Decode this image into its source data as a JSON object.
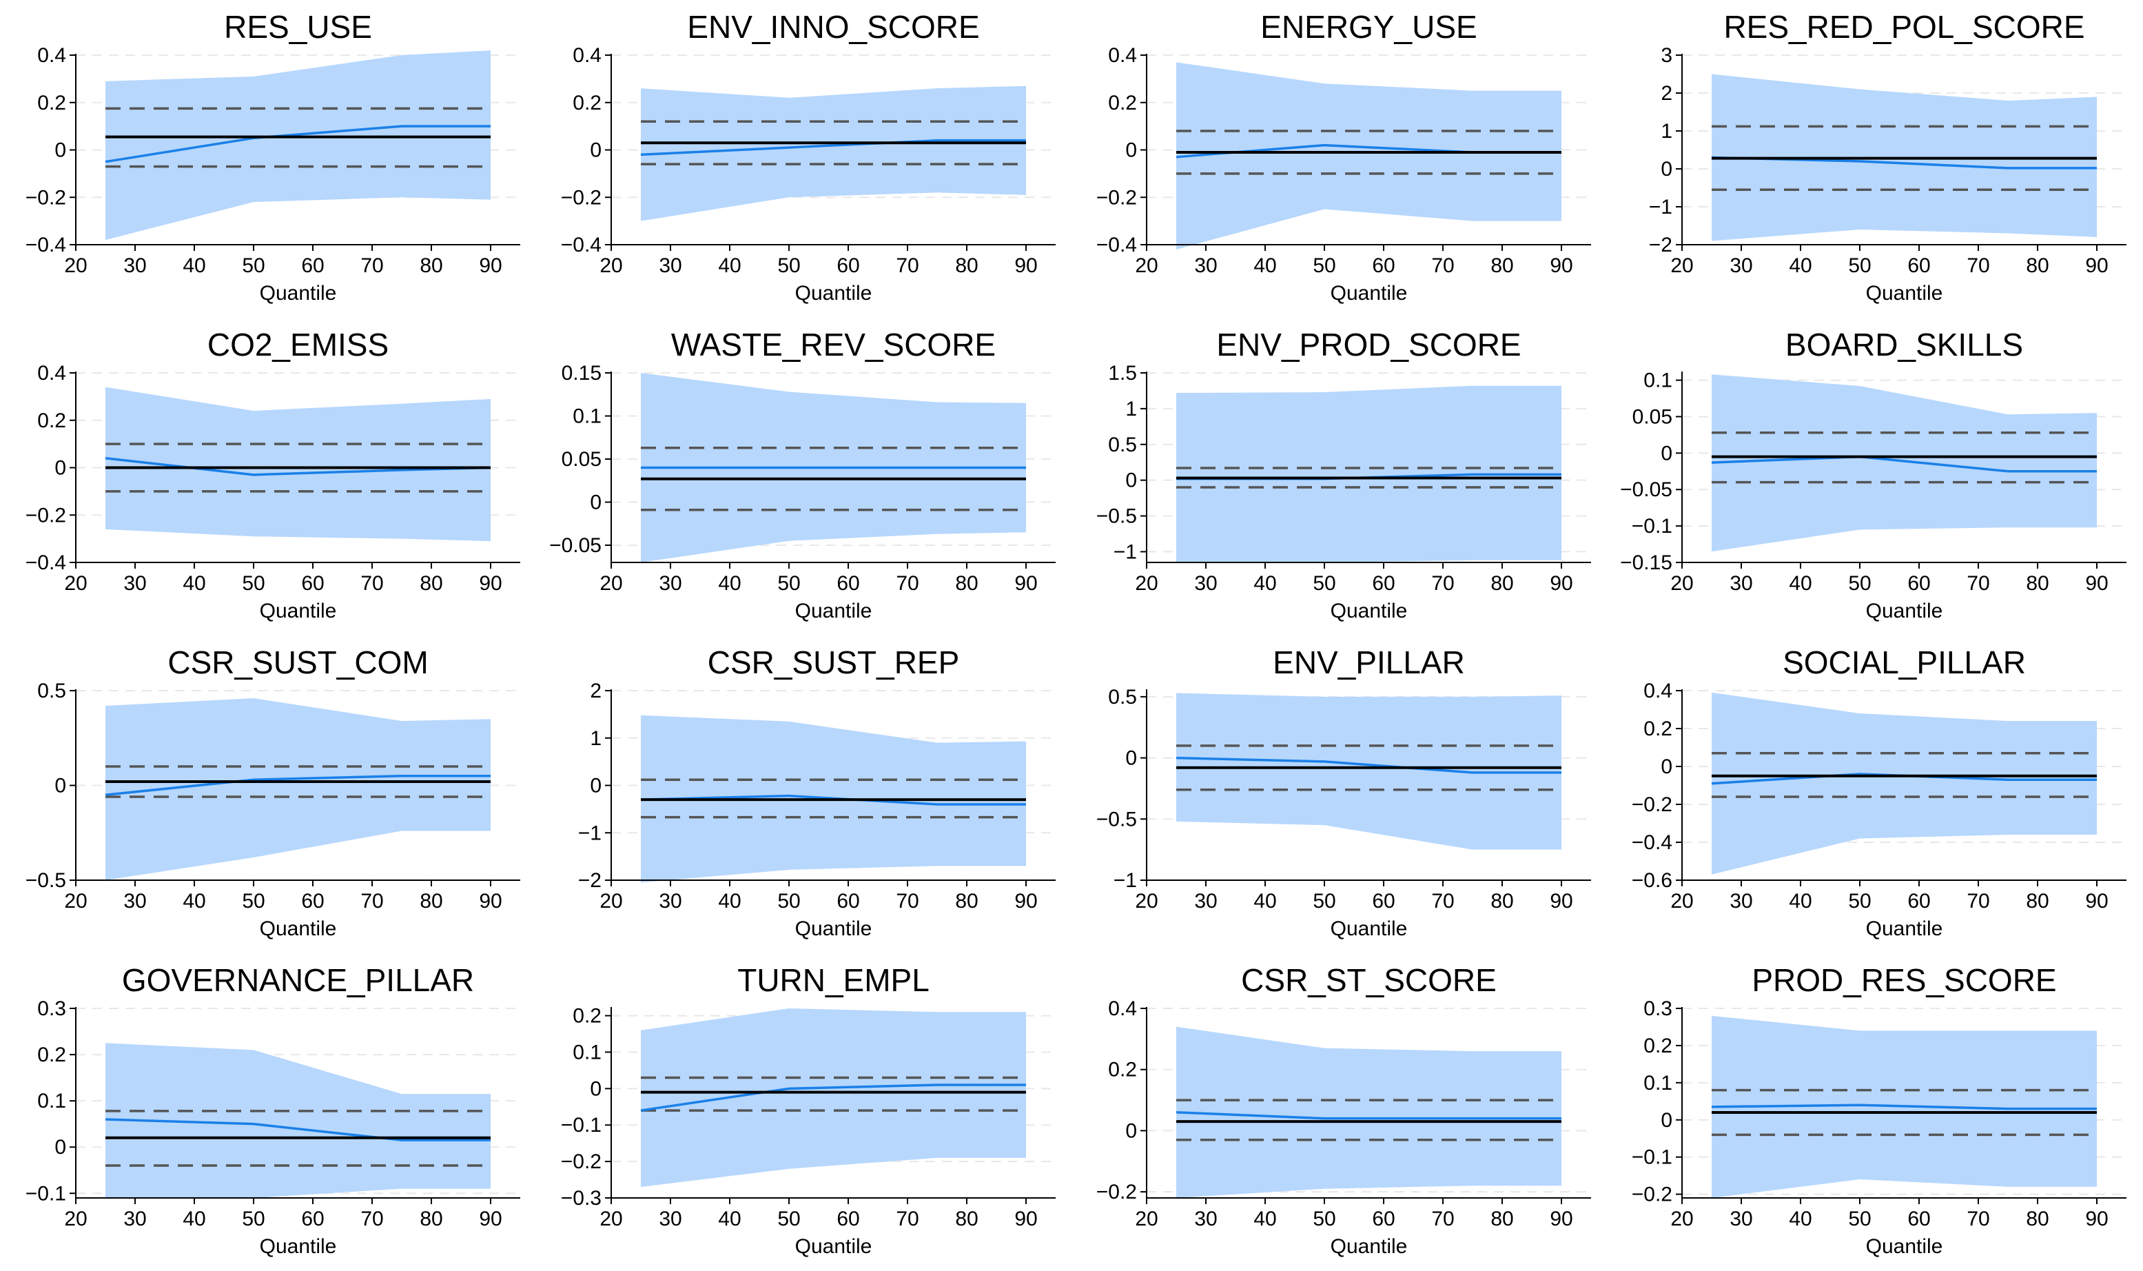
{
  "colors": {
    "band": "#b7d7fd",
    "qr_line": "#1a80e8",
    "ols_line": "#000000",
    "ols_ci": "#555555",
    "grid": "#e8e8e8",
    "axis": "#000000"
  },
  "chart_data": [
    {
      "type": "line",
      "title": "RES_USE",
      "xlabel": "Quantile",
      "ylabel": "",
      "ylim": [
        -0.4,
        0.4
      ],
      "yticks": [
        -0.4,
        -0.2,
        0,
        0.2,
        0.4
      ],
      "ytick_labels": [
        "−0.4",
        "−0.2",
        "0",
        "0.2",
        "0.4"
      ],
      "xlim": [
        20,
        95
      ],
      "xticks": [
        20,
        30,
        40,
        50,
        60,
        70,
        80,
        90
      ],
      "x": [
        25,
        50,
        75,
        90
      ],
      "qr": [
        -0.05,
        0.05,
        0.1,
        0.1
      ],
      "ci_low": [
        -0.38,
        -0.22,
        -0.2,
        -0.21
      ],
      "ci_high": [
        0.29,
        0.31,
        0.4,
        0.42
      ],
      "ols": 0.055,
      "ols_ci": [
        -0.07,
        0.175
      ]
    },
    {
      "type": "line",
      "title": "ENV_INNO_SCORE",
      "xlabel": "Quantile",
      "ylabel": "",
      "ylim": [
        -0.4,
        0.4
      ],
      "yticks": [
        -0.4,
        -0.2,
        0,
        0.2,
        0.4
      ],
      "ytick_labels": [
        "−0.4",
        "−0.2",
        "0",
        "0.2",
        "0.4"
      ],
      "xlim": [
        20,
        95
      ],
      "xticks": [
        20,
        30,
        40,
        50,
        60,
        70,
        80,
        90
      ],
      "x": [
        25,
        50,
        75,
        90
      ],
      "qr": [
        -0.02,
        0.01,
        0.04,
        0.04
      ],
      "ci_low": [
        -0.3,
        -0.2,
        -0.18,
        -0.19
      ],
      "ci_high": [
        0.26,
        0.22,
        0.26,
        0.27
      ],
      "ols": 0.03,
      "ols_ci": [
        -0.06,
        0.12
      ]
    },
    {
      "type": "line",
      "title": "ENERGY_USE",
      "xlabel": "Quantile",
      "ylabel": "",
      "ylim": [
        -0.4,
        0.4
      ],
      "yticks": [
        -0.4,
        -0.2,
        0,
        0.2,
        0.4
      ],
      "ytick_labels": [
        "−0.4",
        "−0.2",
        "0",
        "0.2",
        "0.4"
      ],
      "xlim": [
        20,
        95
      ],
      "xticks": [
        20,
        30,
        40,
        50,
        60,
        70,
        80,
        90
      ],
      "x": [
        25,
        50,
        75,
        90
      ],
      "qr": [
        -0.03,
        0.02,
        -0.01,
        -0.01
      ],
      "ci_low": [
        -0.42,
        -0.25,
        -0.3,
        -0.3
      ],
      "ci_high": [
        0.37,
        0.28,
        0.25,
        0.25
      ],
      "ols": -0.01,
      "ols_ci": [
        -0.1,
        0.08
      ]
    },
    {
      "type": "line",
      "title": "RES_RED_POL_SCORE",
      "xlabel": "Quantile",
      "ylabel": "",
      "ylim": [
        -2,
        3
      ],
      "yticks": [
        -2,
        -1,
        0,
        1,
        2,
        3
      ],
      "ytick_labels": [
        "−2",
        "−1",
        "0",
        "1",
        "2",
        "3"
      ],
      "xlim": [
        20,
        95
      ],
      "xticks": [
        20,
        30,
        40,
        50,
        60,
        70,
        80,
        90
      ],
      "x": [
        25,
        50,
        75,
        90
      ],
      "qr": [
        0.3,
        0.2,
        0.02,
        0.02
      ],
      "ci_low": [
        -1.9,
        -1.6,
        -1.7,
        -1.8
      ],
      "ci_high": [
        2.5,
        2.1,
        1.8,
        1.9
      ],
      "ols": 0.28,
      "ols_ci": [
        -0.55,
        1.12
      ]
    },
    {
      "type": "line",
      "title": "CO2_EMISS",
      "xlabel": "Quantile",
      "ylabel": "",
      "ylim": [
        -0.4,
        0.4
      ],
      "yticks": [
        -0.4,
        -0.2,
        0,
        0.2,
        0.4
      ],
      "ytick_labels": [
        "−0.4",
        "−0.2",
        "0",
        "0.2",
        "0.4"
      ],
      "xlim": [
        20,
        95
      ],
      "xticks": [
        20,
        30,
        40,
        50,
        60,
        70,
        80,
        90
      ],
      "x": [
        25,
        50,
        75,
        90
      ],
      "qr": [
        0.04,
        -0.03,
        -0.01,
        0
      ],
      "ci_low": [
        -0.26,
        -0.29,
        -0.3,
        -0.31
      ],
      "ci_high": [
        0.34,
        0.24,
        0.27,
        0.29
      ],
      "ols": 0,
      "ols_ci": [
        -0.1,
        0.1
      ]
    },
    {
      "type": "line",
      "title": "WASTE_REV_SCORE",
      "xlabel": "Quantile",
      "ylabel": "",
      "ylim": [
        -0.07,
        0.15
      ],
      "yticks": [
        -0.05,
        0,
        0.05,
        0.1,
        0.15
      ],
      "ytick_labels": [
        "−0.05",
        "0",
        "0.05",
        "0.1",
        "0.15"
      ],
      "xlim": [
        20,
        95
      ],
      "xticks": [
        20,
        30,
        40,
        50,
        60,
        70,
        80,
        90
      ],
      "x": [
        25,
        50,
        75,
        90
      ],
      "qr": [
        0.04,
        0.04,
        0.04,
        0.04
      ],
      "ci_low": [
        -0.07,
        -0.045,
        -0.037,
        -0.035
      ],
      "ci_high": [
        0.15,
        0.128,
        0.116,
        0.115
      ],
      "ols": 0.027,
      "ols_ci": [
        -0.009,
        0.063
      ]
    },
    {
      "type": "line",
      "title": "ENV_PROD_SCORE",
      "xlabel": "Quantile",
      "ylabel": "",
      "ylim": [
        -1.15,
        1.5
      ],
      "yticks": [
        -1,
        -0.5,
        0,
        0.5,
        1,
        1.5
      ],
      "ytick_labels": [
        "−1",
        "−0.5",
        "0",
        "0.5",
        "1",
        "1.5"
      ],
      "xlim": [
        20,
        95
      ],
      "xticks": [
        20,
        30,
        40,
        50,
        60,
        70,
        80,
        90
      ],
      "x": [
        25,
        50,
        75,
        90
      ],
      "qr": [
        0.02,
        0.02,
        0.08,
        0.08
      ],
      "ci_low": [
        -1.15,
        -1.15,
        -1.12,
        -1.12
      ],
      "ci_high": [
        1.22,
        1.23,
        1.32,
        1.32
      ],
      "ols": 0.03,
      "ols_ci": [
        -0.1,
        0.17
      ]
    },
    {
      "type": "line",
      "title": "BOARD_SKILLS",
      "xlabel": "Quantile",
      "ylabel": "",
      "ylim": [
        -0.15,
        0.11
      ],
      "yticks": [
        -0.15,
        -0.1,
        -0.05,
        0,
        0.05,
        0.1
      ],
      "ytick_labels": [
        "−0.15",
        "−0.1",
        "−0.05",
        "0",
        "0.05",
        "0.1"
      ],
      "xlim": [
        20,
        95
      ],
      "xticks": [
        20,
        30,
        40,
        50,
        60,
        70,
        80,
        90
      ],
      "x": [
        25,
        50,
        75,
        90
      ],
      "qr": [
        -0.013,
        -0.005,
        -0.025,
        -0.025
      ],
      "ci_low": [
        -0.135,
        -0.105,
        -0.102,
        -0.102
      ],
      "ci_high": [
        0.108,
        0.092,
        0.053,
        0.055
      ],
      "ols": -0.005,
      "ols_ci": [
        -0.04,
        0.028
      ]
    },
    {
      "type": "line",
      "title": "CSR_SUST_COM",
      "xlabel": "Quantile",
      "ylabel": "",
      "ylim": [
        -0.5,
        0.5
      ],
      "yticks": [
        -0.5,
        0,
        0.5
      ],
      "ytick_labels": [
        "−0.5",
        "0",
        "0.5"
      ],
      "xlim": [
        20,
        95
      ],
      "xticks": [
        20,
        30,
        40,
        50,
        60,
        70,
        80,
        90
      ],
      "x": [
        25,
        50,
        75,
        90
      ],
      "qr": [
        -0.05,
        0.03,
        0.05,
        0.05
      ],
      "ci_low": [
        -0.5,
        -0.38,
        -0.24,
        -0.24
      ],
      "ci_high": [
        0.42,
        0.46,
        0.34,
        0.35
      ],
      "ols": 0.02,
      "ols_ci": [
        -0.06,
        0.1
      ]
    },
    {
      "type": "line",
      "title": "CSR_SUST_REP",
      "xlabel": "Quantile",
      "ylabel": "",
      "ylim": [
        -2,
        2
      ],
      "yticks": [
        -2,
        -1,
        0,
        1,
        2
      ],
      "ytick_labels": [
        "−2",
        "−1",
        "0",
        "1",
        "2"
      ],
      "xlim": [
        20,
        95
      ],
      "xticks": [
        20,
        30,
        40,
        50,
        60,
        70,
        80,
        90
      ],
      "x": [
        25,
        50,
        75,
        90
      ],
      "qr": [
        -0.3,
        -0.22,
        -0.4,
        -0.4
      ],
      "ci_low": [
        -2.05,
        -1.78,
        -1.7,
        -1.7
      ],
      "ci_high": [
        1.48,
        1.35,
        0.9,
        0.93
      ],
      "ols": -0.3,
      "ols_ci": [
        -0.67,
        0.12
      ]
    },
    {
      "type": "line",
      "title": "ENV_PILLAR",
      "xlabel": "Quantile",
      "ylabel": "",
      "ylim": [
        -1,
        0.55
      ],
      "yticks": [
        -1,
        -0.5,
        0,
        0.5
      ],
      "ytick_labels": [
        "−1",
        "−0.5",
        "0",
        "0.5"
      ],
      "xlim": [
        20,
        95
      ],
      "xticks": [
        20,
        30,
        40,
        50,
        60,
        70,
        80,
        90
      ],
      "x": [
        25,
        50,
        75,
        90
      ],
      "qr": [
        0,
        -0.03,
        -0.12,
        -0.12
      ],
      "ci_low": [
        -0.52,
        -0.55,
        -0.75,
        -0.75
      ],
      "ci_high": [
        0.53,
        0.5,
        0.5,
        0.51
      ],
      "ols": -0.08,
      "ols_ci": [
        -0.26,
        0.1
      ]
    },
    {
      "type": "line",
      "title": "SOCIAL_PILLAR",
      "xlabel": "Quantile",
      "ylabel": "",
      "ylim": [
        -0.6,
        0.4
      ],
      "yticks": [
        -0.6,
        -0.4,
        -0.2,
        0,
        0.2,
        0.4
      ],
      "ytick_labels": [
        "−0.6",
        "−0.4",
        "−0.2",
        "0",
        "0.2",
        "0.4"
      ],
      "xlim": [
        20,
        95
      ],
      "xticks": [
        20,
        30,
        40,
        50,
        60,
        70,
        80,
        90
      ],
      "x": [
        25,
        50,
        75,
        90
      ],
      "qr": [
        -0.09,
        -0.04,
        -0.07,
        -0.07
      ],
      "ci_low": [
        -0.57,
        -0.38,
        -0.36,
        -0.36
      ],
      "ci_high": [
        0.39,
        0.28,
        0.24,
        0.24
      ],
      "ols": -0.05,
      "ols_ci": [
        -0.16,
        0.07
      ]
    },
    {
      "type": "line",
      "title": "GOVERNANCE_PILLAR",
      "xlabel": "Quantile",
      "ylabel": "",
      "ylim": [
        -0.11,
        0.3
      ],
      "yticks": [
        -0.1,
        0,
        0.1,
        0.2,
        0.3
      ],
      "ytick_labels": [
        "−0.1",
        "0",
        "0.1",
        "0.2",
        "0.3"
      ],
      "xlim": [
        20,
        95
      ],
      "xticks": [
        20,
        30,
        40,
        50,
        60,
        70,
        80,
        90
      ],
      "x": [
        25,
        50,
        75,
        90
      ],
      "qr": [
        0.06,
        0.05,
        0.015,
        0.015
      ],
      "ci_low": [
        -0.11,
        -0.11,
        -0.09,
        -0.09
      ],
      "ci_high": [
        0.225,
        0.21,
        0.115,
        0.115
      ],
      "ols": 0.02,
      "ols_ci": [
        -0.04,
        0.078
      ]
    },
    {
      "type": "line",
      "title": "TURN_EMPL",
      "xlabel": "Quantile",
      "ylabel": "",
      "ylim": [
        -0.3,
        0.22
      ],
      "yticks": [
        -0.3,
        -0.2,
        -0.1,
        0,
        0.1,
        0.2
      ],
      "ytick_labels": [
        "−0.3",
        "−0.2",
        "−0.1",
        "0",
        "0.1",
        "0.2"
      ],
      "xlim": [
        20,
        95
      ],
      "xticks": [
        20,
        30,
        40,
        50,
        60,
        70,
        80,
        90
      ],
      "x": [
        25,
        50,
        75,
        90
      ],
      "qr": [
        -0.06,
        0,
        0.01,
        0.01
      ],
      "ci_low": [
        -0.27,
        -0.22,
        -0.19,
        -0.19
      ],
      "ci_high": [
        0.16,
        0.22,
        0.21,
        0.21
      ],
      "ols": -0.01,
      "ols_ci": [
        -0.06,
        0.03
      ]
    },
    {
      "type": "line",
      "title": "CSR_ST_SCORE",
      "xlabel": "Quantile",
      "ylabel": "",
      "ylim": [
        -0.22,
        0.4
      ],
      "yticks": [
        -0.2,
        0,
        0.2,
        0.4
      ],
      "ytick_labels": [
        "−0.2",
        "0",
        "0.2",
        "0.4"
      ],
      "xlim": [
        20,
        95
      ],
      "xticks": [
        20,
        30,
        40,
        50,
        60,
        70,
        80,
        90
      ],
      "x": [
        25,
        50,
        75,
        90
      ],
      "qr": [
        0.06,
        0.04,
        0.04,
        0.04
      ],
      "ci_low": [
        -0.22,
        -0.19,
        -0.18,
        -0.18
      ],
      "ci_high": [
        0.34,
        0.27,
        0.26,
        0.26
      ],
      "ols": 0.03,
      "ols_ci": [
        -0.03,
        0.1
      ]
    },
    {
      "type": "line",
      "title": "PROD_RES_SCORE",
      "xlabel": "Quantile",
      "ylabel": "",
      "ylim": [
        -0.21,
        0.3
      ],
      "yticks": [
        -0.2,
        -0.1,
        0,
        0.1,
        0.2,
        0.3
      ],
      "ytick_labels": [
        "−0.2",
        "−0.1",
        "0",
        "0.1",
        "0.2",
        "0.3"
      ],
      "xlim": [
        20,
        95
      ],
      "xticks": [
        20,
        30,
        40,
        50,
        60,
        70,
        80,
        90
      ],
      "x": [
        25,
        50,
        75,
        90
      ],
      "qr": [
        0.035,
        0.04,
        0.03,
        0.03
      ],
      "ci_low": [
        -0.21,
        -0.16,
        -0.18,
        -0.18
      ],
      "ci_high": [
        0.28,
        0.24,
        0.24,
        0.24
      ],
      "ols": 0.02,
      "ols_ci": [
        -0.04,
        0.08
      ]
    }
  ]
}
